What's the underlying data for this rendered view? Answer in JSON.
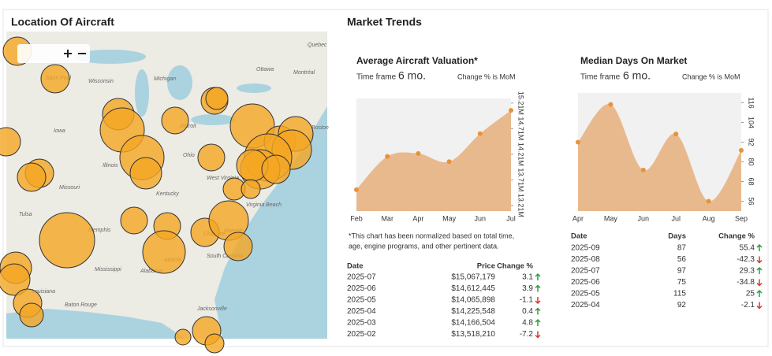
{
  "map": {
    "title": "Location Of Aircraft",
    "labels": [
      "Quebec",
      "Ottawa",
      "Montréal",
      "Saint Paul",
      "Wisconsin",
      "Michigan",
      "Detroit",
      "Iowa",
      "Illinois",
      "Ohio",
      "Missouri",
      "Kentucky",
      "West Virginia",
      "Virginia Beach",
      "Tulsa",
      "Memphis",
      "Raleigh",
      "Charlotte",
      "Atlanta",
      "South Carolina",
      "Mississippi",
      "Alabama",
      "Louisiana",
      "Baton Rouge",
      "Jacksonville",
      "Boston"
    ]
  },
  "market": {
    "title": "Market Trends",
    "footnote": [
      "*This chart has been normalized based on total time,",
      "age, engine programs, and other pertinent data."
    ]
  },
  "chart_data": [
    {
      "type": "area",
      "title": "Average Aircraft Valuation*",
      "time_frame_label": "Time frame",
      "time_frame": "6 mo.",
      "note": "Change % is MoM",
      "categories": [
        "Feb",
        "Mar",
        "Apr",
        "May",
        "Jun",
        "Jul"
      ],
      "values": [
        13518210,
        14166504,
        14225548,
        14065898,
        14612445,
        15067179
      ],
      "ylim": [
        13100000,
        15300000
      ],
      "yticks": [
        {
          "value": 13210000,
          "label": "13.21M"
        },
        {
          "value": 13710000,
          "label": "13.71M"
        },
        {
          "value": 14210000,
          "label": "14.21M"
        },
        {
          "value": 14710000,
          "label": "14.71M"
        },
        {
          "value": 15210000,
          "label": "15.21M"
        }
      ],
      "color": "#e9b98e",
      "point_color": "#e8923a"
    },
    {
      "type": "area",
      "title": "Median Days On Market",
      "time_frame_label": "Time frame",
      "time_frame": "6 mo.",
      "note": "Change % is MoM",
      "categories": [
        "Apr",
        "May",
        "Jun",
        "Jul",
        "Aug",
        "Sep"
      ],
      "values": [
        92,
        115,
        75,
        97,
        56,
        87
      ],
      "ylim": [
        50,
        122
      ],
      "yticks": [
        56,
        68,
        80,
        92,
        104,
        116
      ],
      "color": "#e9b98e",
      "point_color": "#e8923a"
    }
  ],
  "tables": [
    {
      "columns": [
        "Date",
        "Price",
        "Change %"
      ],
      "rows": [
        [
          "2025-07",
          "$15,067,179",
          "3.1"
        ],
        [
          "2025-06",
          "$14,612,445",
          "3.9"
        ],
        [
          "2025-05",
          "$14,065,898",
          "-1.1"
        ],
        [
          "2025-04",
          "$14,225,548",
          "0.4"
        ],
        [
          "2025-03",
          "$14,166,504",
          "4.8"
        ],
        [
          "2025-02",
          "$13,518,210",
          "-7.2"
        ]
      ]
    },
    {
      "columns": [
        "Date",
        "Days",
        "Change %"
      ],
      "rows": [
        [
          "2025-09",
          "87",
          "55.4"
        ],
        [
          "2025-08",
          "56",
          "-42.3"
        ],
        [
          "2025-07",
          "97",
          "29.3"
        ],
        [
          "2025-06",
          "75",
          "-34.8"
        ],
        [
          "2025-05",
          "115",
          "25"
        ],
        [
          "2025-04",
          "92",
          "-2.1"
        ]
      ]
    }
  ]
}
